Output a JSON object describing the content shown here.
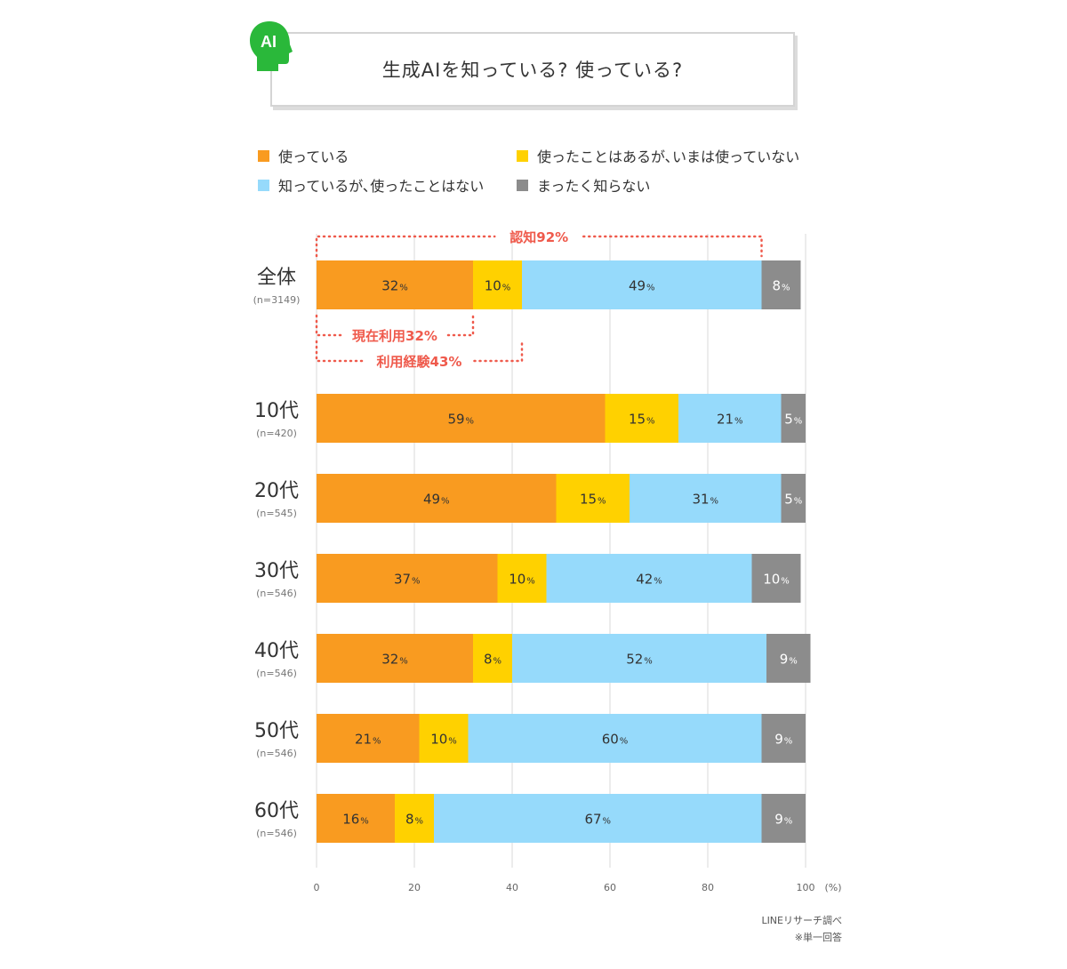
{
  "title": "生成AIを知っている? 使っている?",
  "icon_label": "AI",
  "colors": {
    "using": "#f99b20",
    "used_before": "#ffd100",
    "aware_not_used": "#96dafb",
    "not_aware": "#8c8c8c",
    "annotation": "#ef5a4c",
    "icon": "#2ab83a",
    "grid": "#d9d9d9"
  },
  "legend": [
    {
      "label": "使っている",
      "color_key": "using"
    },
    {
      "label": "使ったことはあるが､いまは使っていない",
      "color_key": "used_before"
    },
    {
      "label": "知っているが､使ったことはない",
      "color_key": "aware_not_used"
    },
    {
      "label": "まったく知らない",
      "color_key": "not_aware"
    }
  ],
  "annotations": {
    "awareness": "認知92%",
    "current_use": "現在利用32%",
    "use_experience": "利用経験43%"
  },
  "source": "LINEリサーチ調べ",
  "note": "※単一回答",
  "chart_data": {
    "type": "bar",
    "orientation": "horizontal",
    "stacked": true,
    "percent_suffix": "%",
    "categories": [
      {
        "label": "全体",
        "n": "(n=3149)"
      },
      {
        "label": "10代",
        "n": "(n=420)"
      },
      {
        "label": "20代",
        "n": "(n=545)"
      },
      {
        "label": "30代",
        "n": "(n=546)"
      },
      {
        "label": "40代",
        "n": "(n=546)"
      },
      {
        "label": "50代",
        "n": "(n=546)"
      },
      {
        "label": "60代",
        "n": "(n=546)"
      }
    ],
    "series": [
      {
        "name": "使っている",
        "color_key": "using",
        "values": [
          32,
          59,
          49,
          37,
          32,
          21,
          16
        ]
      },
      {
        "name": "使ったことはあるが､いまは使っていない",
        "color_key": "used_before",
        "values": [
          10,
          15,
          15,
          10,
          8,
          10,
          8
        ]
      },
      {
        "name": "知っているが､使ったことはない",
        "color_key": "aware_not_used",
        "values": [
          49,
          21,
          31,
          42,
          52,
          60,
          67
        ]
      },
      {
        "name": "まったく知らない",
        "color_key": "not_aware",
        "values": [
          8,
          5,
          5,
          10,
          9,
          9,
          9
        ]
      }
    ],
    "xlim": [
      0,
      100
    ],
    "xticks": [
      "0",
      "20",
      "40",
      "60",
      "80",
      "100"
    ],
    "xunit": "(%)",
    "grid": true
  }
}
